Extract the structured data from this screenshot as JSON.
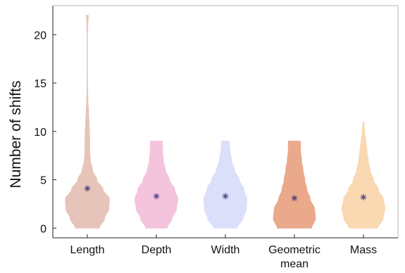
{
  "chart_data": {
    "type": "violin",
    "title": "",
    "xlabel": "",
    "ylabel": "Number of shifts",
    "ylim": [
      -1,
      23
    ],
    "yticks": [
      0,
      5,
      10,
      15,
      20
    ],
    "grid": false,
    "legend": "none",
    "marker": "*",
    "mean_color": "#4a3c78",
    "series": [
      {
        "category": "Length",
        "category_lines": [
          "Length"
        ],
        "color": "#e7c4b9",
        "mean": 4.1,
        "min": 0,
        "max": 22,
        "profile": [
          [
            0,
            0.5
          ],
          [
            1,
            0.72
          ],
          [
            2,
            0.9
          ],
          [
            3,
            0.92
          ],
          [
            4,
            0.66
          ],
          [
            5,
            0.4
          ],
          [
            6,
            0.22
          ],
          [
            7,
            0.13
          ],
          [
            8,
            0.1
          ],
          [
            9,
            0.1
          ],
          [
            10,
            0.09
          ],
          [
            11,
            0.07
          ],
          [
            12,
            0.05
          ],
          [
            13,
            0.03
          ],
          [
            14,
            0.015
          ],
          [
            16,
            0.01
          ],
          [
            18,
            0.01
          ],
          [
            20,
            0.01
          ],
          [
            21,
            0.02
          ],
          [
            22,
            0.04
          ]
        ]
      },
      {
        "category": "Depth",
        "category_lines": [
          "Depth"
        ],
        "color": "#f3c4dc",
        "mean": 3.3,
        "min": 0,
        "max": 9,
        "profile": [
          [
            0,
            0.45
          ],
          [
            1,
            0.66
          ],
          [
            2,
            0.84
          ],
          [
            3,
            0.9
          ],
          [
            4,
            0.77
          ],
          [
            5,
            0.55
          ],
          [
            6,
            0.38
          ],
          [
            7,
            0.29
          ],
          [
            8,
            0.26
          ],
          [
            9,
            0.25
          ]
        ]
      },
      {
        "category": "Width",
        "category_lines": [
          "Width"
        ],
        "color": "#dcdffa",
        "mean": 3.3,
        "min": 0,
        "max": 9,
        "profile": [
          [
            0,
            0.48
          ],
          [
            1,
            0.74
          ],
          [
            2,
            0.88
          ],
          [
            3,
            0.9
          ],
          [
            4,
            0.78
          ],
          [
            5,
            0.58
          ],
          [
            6,
            0.38
          ],
          [
            7,
            0.26
          ],
          [
            8,
            0.19
          ],
          [
            9,
            0.16
          ]
        ]
      },
      {
        "category": "Geometric mean",
        "category_lines": [
          "Geometric",
          "mean"
        ],
        "color": "#e9a98a",
        "mean": 3.1,
        "min": 0,
        "max": 9,
        "profile": [
          [
            0,
            0.72
          ],
          [
            1,
            0.88
          ],
          [
            2,
            0.84
          ],
          [
            3,
            0.66
          ],
          [
            4,
            0.52
          ],
          [
            5,
            0.43
          ],
          [
            6,
            0.36
          ],
          [
            7,
            0.3
          ],
          [
            8,
            0.26
          ],
          [
            9,
            0.25
          ]
        ]
      },
      {
        "category": "Mass",
        "category_lines": [
          "Mass"
        ],
        "color": "#f9d8b2",
        "mean": 3.2,
        "min": 0,
        "max": 11,
        "profile": [
          [
            0,
            0.6
          ],
          [
            1,
            0.82
          ],
          [
            2,
            0.9
          ],
          [
            3,
            0.83
          ],
          [
            4,
            0.62
          ],
          [
            5,
            0.42
          ],
          [
            6,
            0.28
          ],
          [
            7,
            0.2
          ],
          [
            8,
            0.15
          ],
          [
            9,
            0.1
          ],
          [
            10,
            0.05
          ],
          [
            11,
            0.02
          ]
        ]
      }
    ]
  }
}
